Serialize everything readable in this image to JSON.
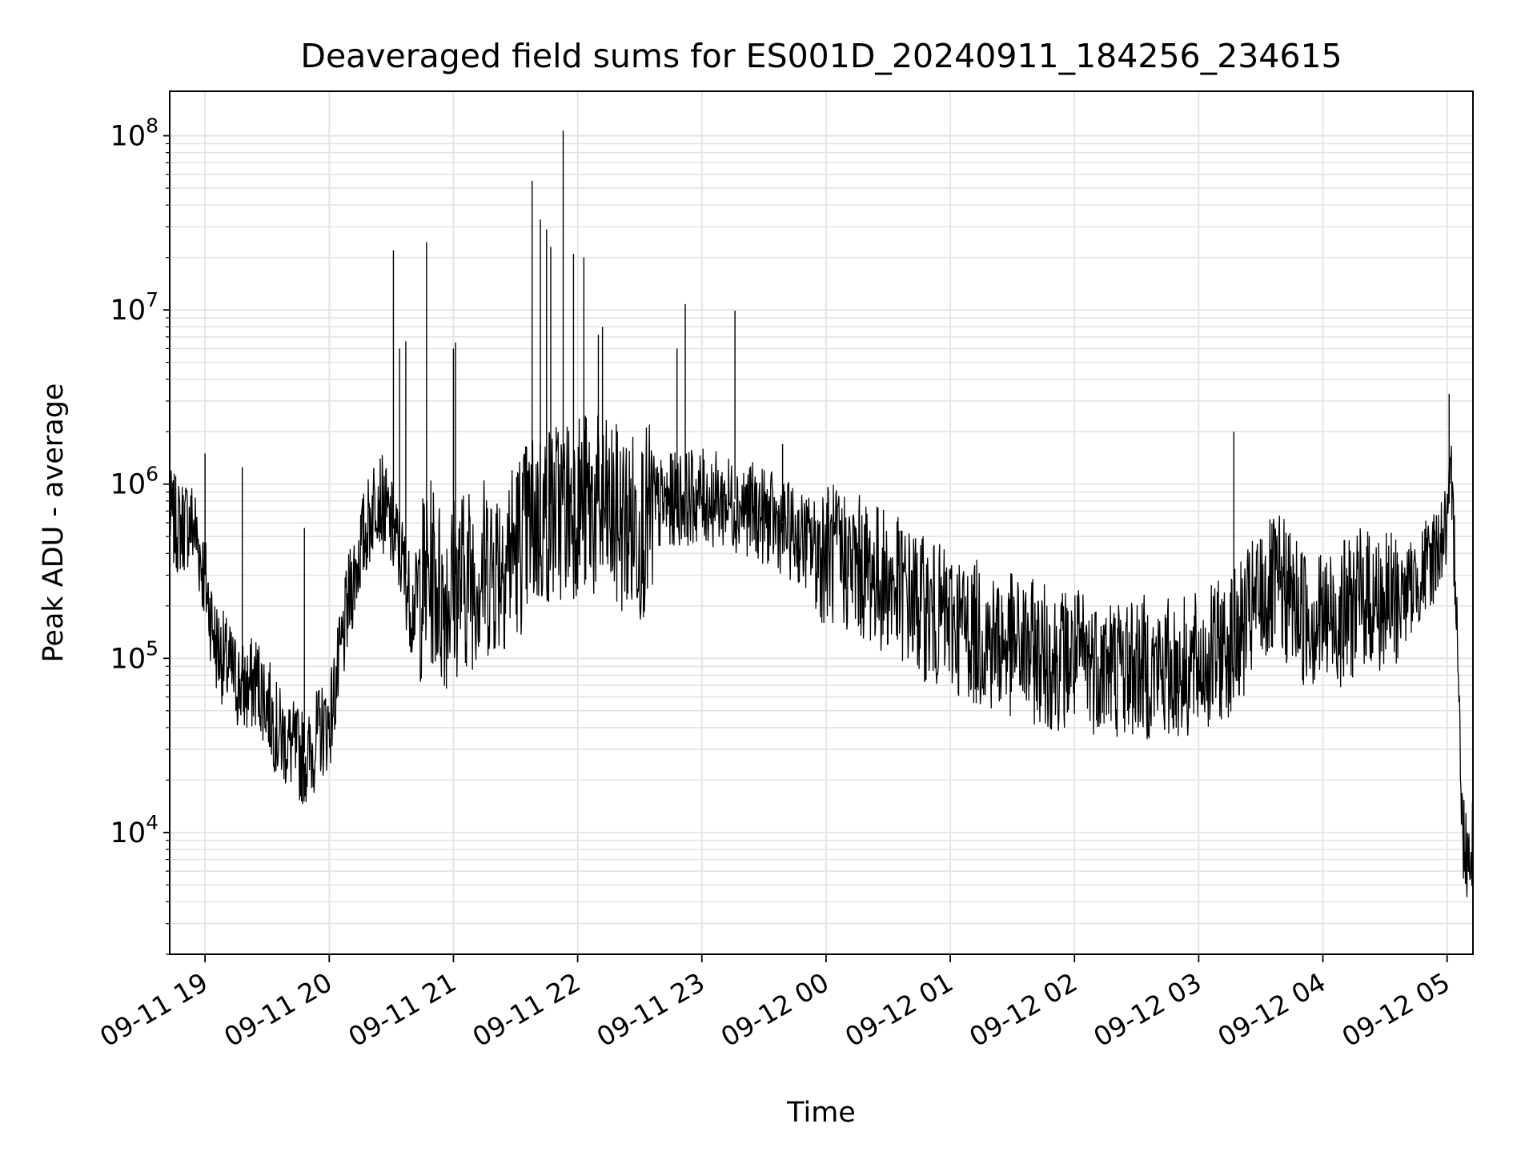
{
  "chart_data": {
    "type": "line",
    "title": "Deaveraged field sums for ES001D_20240911_184256_234615",
    "xlabel": "Time",
    "ylabel": "Peak ADU - average",
    "yscale": "log",
    "grid": true,
    "line_color": "#000000",
    "grid_color": "#e3e3e3",
    "xlim": [
      "2024-09-11 18:42:56",
      "2024-09-12 05:12:30"
    ],
    "ylim": [
      2000,
      180000000
    ],
    "x_ticks": [
      "2024-09-11 19:00",
      "2024-09-11 20:00",
      "2024-09-11 21:00",
      "2024-09-11 22:00",
      "2024-09-11 23:00",
      "2024-09-12 00:00",
      "2024-09-12 01:00",
      "2024-09-12 02:00",
      "2024-09-12 03:00",
      "2024-09-12 04:00",
      "2024-09-12 05:00"
    ],
    "x_tick_labels": [
      "09-11 19",
      "09-11 20",
      "09-11 21",
      "09-11 22",
      "09-11 23",
      "09-12 00",
      "09-12 01",
      "09-12 02",
      "09-12 03",
      "09-12 04",
      "09-12 05"
    ],
    "y_ticks": [
      10000,
      100000,
      1000000,
      10000000,
      100000000
    ],
    "y_tick_labels": [
      {
        "base": "10",
        "exp": "4"
      },
      {
        "base": "10",
        "exp": "5"
      },
      {
        "base": "10",
        "exp": "6"
      },
      {
        "base": "10",
        "exp": "7"
      },
      {
        "base": "10",
        "exp": "8"
      }
    ],
    "series": [
      {
        "x": [
          "2024-09-11 18:42:56",
          "2024-09-11 18:47",
          "2024-09-11 18:52",
          "2024-09-11 18:55",
          "2024-09-11 19:00",
          "2024-09-11 19:05",
          "2024-09-11 19:10",
          "2024-09-11 19:15",
          "2024-09-11 19:20",
          "2024-09-11 19:25",
          "2024-09-11 19:30",
          "2024-09-11 19:35",
          "2024-09-11 19:40",
          "2024-09-11 19:45",
          "2024-09-11 19:50",
          "2024-09-11 19:55",
          "2024-09-11 20:00",
          "2024-09-11 20:05",
          "2024-09-11 20:10",
          "2024-09-11 20:15",
          "2024-09-11 20:20",
          "2024-09-11 20:23",
          "2024-09-11 20:30",
          "2024-09-11 20:35",
          "2024-09-11 20:40",
          "2024-09-11 20:45",
          "2024-09-11 20:50",
          "2024-09-11 20:55",
          "2024-09-11 21:00",
          "2024-09-11 21:10",
          "2024-09-11 21:20",
          "2024-09-11 21:30",
          "2024-09-11 21:40",
          "2024-09-11 21:50",
          "2024-09-11 22:00",
          "2024-09-11 22:10",
          "2024-09-11 22:20",
          "2024-09-11 22:30",
          "2024-09-11 22:40",
          "2024-09-11 22:50",
          "2024-09-11 23:00",
          "2024-09-11 23:10",
          "2024-09-11 23:20",
          "2024-09-11 23:30",
          "2024-09-11 23:40",
          "2024-09-11 23:50",
          "2024-09-12 00:00",
          "2024-09-12 00:10",
          "2024-09-12 00:20",
          "2024-09-12 00:30",
          "2024-09-12 00:40",
          "2024-09-12 00:50",
          "2024-09-12 01:00",
          "2024-09-12 01:10",
          "2024-09-12 01:20",
          "2024-09-12 01:30",
          "2024-09-12 01:40",
          "2024-09-12 01:50",
          "2024-09-12 02:00",
          "2024-09-12 02:10",
          "2024-09-12 02:20",
          "2024-09-12 02:30",
          "2024-09-12 02:40",
          "2024-09-12 02:50",
          "2024-09-12 03:00",
          "2024-09-12 03:10",
          "2024-09-12 03:20",
          "2024-09-12 03:30",
          "2024-09-12 03:40",
          "2024-09-12 03:50",
          "2024-09-12 04:00",
          "2024-09-12 04:10",
          "2024-09-12 04:20",
          "2024-09-12 04:30",
          "2024-09-12 04:40",
          "2024-09-12 04:50",
          "2024-09-12 04:55",
          "2024-09-12 05:00",
          "2024-09-12 05:02",
          "2024-09-12 05:05",
          "2024-09-12 05:07",
          "2024-09-12 05:10",
          "2024-09-12 05:12:30"
        ],
        "values": [
          700000,
          600000,
          650000,
          600000,
          300000,
          130000,
          100000,
          80000,
          70000,
          80000,
          60000,
          40000,
          35000,
          30000,
          28000,
          40000,
          45000,
          100000,
          250000,
          450000,
          700000,
          1000000,
          600000,
          400000,
          200000,
          300000,
          350000,
          250000,
          300000,
          350000,
          400000,
          500000,
          700000,
          800000,
          900000,
          800000,
          700000,
          650000,
          800000,
          900000,
          900000,
          850000,
          800000,
          700000,
          600000,
          500000,
          450000,
          400000,
          350000,
          300000,
          250000,
          200000,
          180000,
          160000,
          140000,
          130000,
          120000,
          110000,
          110000,
          105000,
          100000,
          100000,
          95000,
          95000,
          100000,
          120000,
          150000,
          250000,
          280000,
          200000,
          180000,
          200000,
          250000,
          220000,
          250000,
          350000,
          450000,
          600000,
          1000000,
          200000,
          12000,
          8000,
          10000
        ],
        "spikes": [
          {
            "x": "2024-09-11 19:00",
            "y": 1500000
          },
          {
            "x": "2024-09-11 19:18",
            "y": 1250000
          },
          {
            "x": "2024-09-11 19:48",
            "y": 560000
          },
          {
            "x": "2024-09-11 20:31",
            "y": 22000000
          },
          {
            "x": "2024-09-11 20:34",
            "y": 6000000
          },
          {
            "x": "2024-09-11 20:37",
            "y": 6600000
          },
          {
            "x": "2024-09-11 20:47",
            "y": 24500000
          },
          {
            "x": "2024-09-11 21:00",
            "y": 6000000
          },
          {
            "x": "2024-09-11 21:01",
            "y": 6500000
          },
          {
            "x": "2024-09-11 21:38",
            "y": 55000000
          },
          {
            "x": "2024-09-11 21:42",
            "y": 33000000
          },
          {
            "x": "2024-09-11 21:45",
            "y": 29000000
          },
          {
            "x": "2024-09-11 21:47",
            "y": 23000000
          },
          {
            "x": "2024-09-11 21:53",
            "y": 107000000
          },
          {
            "x": "2024-09-11 21:58",
            "y": 21000000
          },
          {
            "x": "2024-09-11 22:03",
            "y": 20000000
          },
          {
            "x": "2024-09-11 22:10",
            "y": 7200000
          },
          {
            "x": "2024-09-11 22:12",
            "y": 8000000
          },
          {
            "x": "2024-09-11 22:48",
            "y": 6000000
          },
          {
            "x": "2024-09-11 22:52",
            "y": 10800000
          },
          {
            "x": "2024-09-11 23:16",
            "y": 9900000
          },
          {
            "x": "2024-09-11 23:39",
            "y": 1700000
          },
          {
            "x": "2024-09-12 03:17",
            "y": 2000000
          },
          {
            "x": "2024-09-12 05:01",
            "y": 3300000
          }
        ]
      }
    ]
  }
}
